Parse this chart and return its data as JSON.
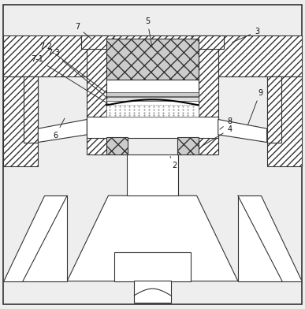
{
  "bg_color": "#eeeeee",
  "line_color": "#333333",
  "label_color": "#111111",
  "lw": 0.8
}
